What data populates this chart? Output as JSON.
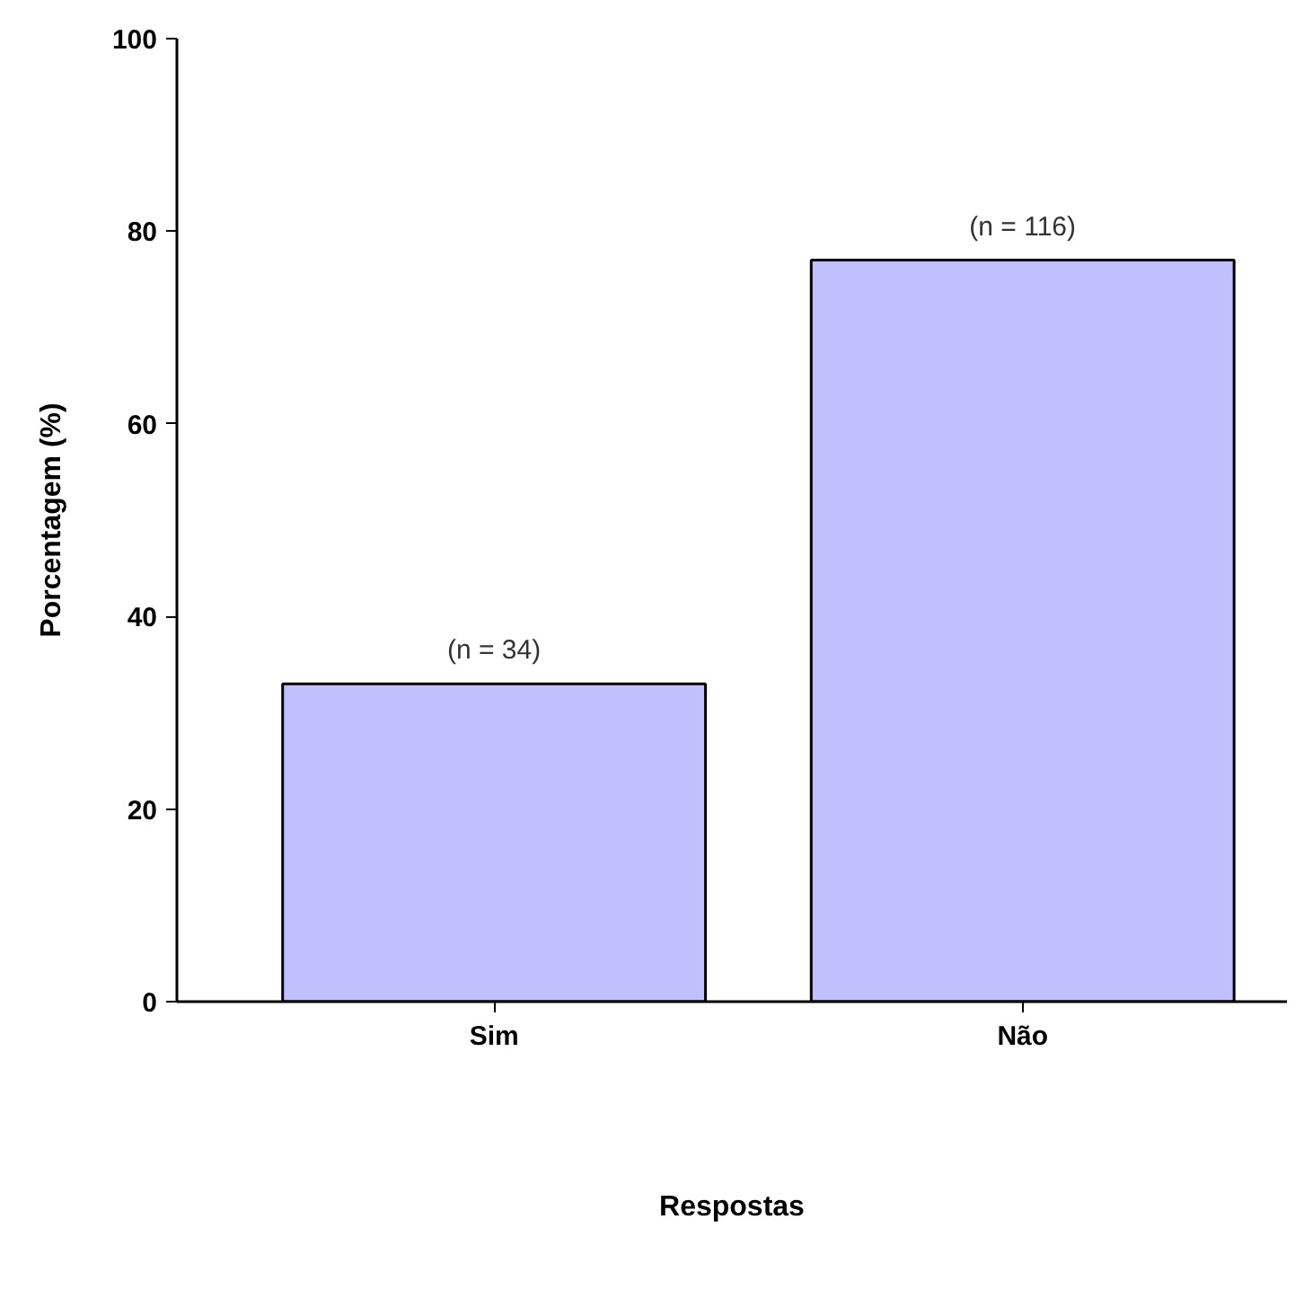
{
  "chart_data": {
    "type": "bar",
    "xlabel": "Respostas",
    "ylabel": "Porcentagem (%)",
    "categories": [
      "Sim",
      "Não"
    ],
    "values": [
      33,
      77
    ],
    "color": "#c0c0ff",
    "annotations": [
      {
        "text": "(n = 34)",
        "x": "Sim",
        "y": 33
      },
      {
        "text": "(n = 116)",
        "x": "Não",
        "y": 77
      }
    ],
    "ylim": [
      0,
      100
    ],
    "yticks": [
      0,
      20,
      40,
      60,
      80,
      100
    ],
    "grid": false
  }
}
